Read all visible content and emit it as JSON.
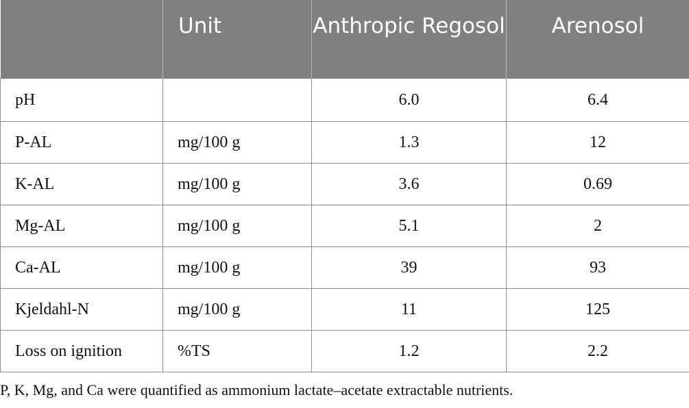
{
  "table": {
    "headers": [
      "",
      "Unit",
      "Anthropic Regosol",
      "Arenosol"
    ],
    "rows": [
      {
        "parameter": "pH",
        "unit": "",
        "anthropic_regosol": "6.0",
        "arenosol": "6.4"
      },
      {
        "parameter": "P-AL",
        "unit": "mg/100 g",
        "anthropic_regosol": "1.3",
        "arenosol": "12"
      },
      {
        "parameter": "K-AL",
        "unit": "mg/100 g",
        "anthropic_regosol": "3.6",
        "arenosol": "0.69"
      },
      {
        "parameter": "Mg-AL",
        "unit": "mg/100 g",
        "anthropic_regosol": "5.1",
        "arenosol": "2"
      },
      {
        "parameter": "Ca-AL",
        "unit": "mg/100 g",
        "anthropic_regosol": "39",
        "arenosol": "93"
      },
      {
        "parameter": "Kjeldahl-N",
        "unit": "mg/100 g",
        "anthropic_regosol": "11",
        "arenosol": "125"
      },
      {
        "parameter": "Loss on ignition",
        "unit": "%TS",
        "anthropic_regosol": "1.2",
        "arenosol": "2.2"
      }
    ]
  },
  "footnote": "P, K, Mg, and Ca were quantified as ammonium lactate–acetate extractable nutrients.",
  "colors": {
    "header_background": "#808080",
    "header_text": "#ffffff",
    "border": "#8c8c8c"
  }
}
